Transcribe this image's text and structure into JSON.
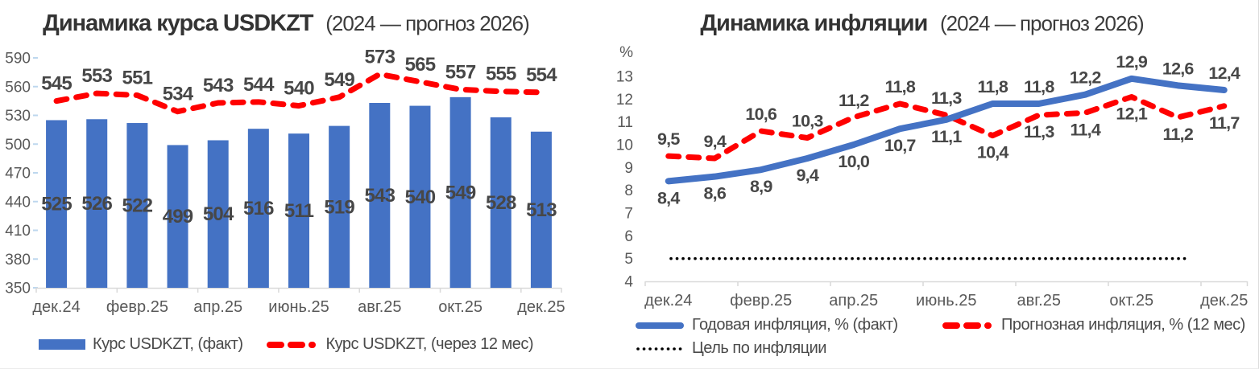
{
  "page": {
    "background": "#FFFFFF"
  },
  "chart_data": [
    {
      "type": "bar",
      "title": "Динамика курса USDKZT",
      "subtitle": "(2024 — прогноз 2026)",
      "x_points": 13,
      "x_tick_interval": 2,
      "x_tick_labels": [
        "дек.24",
        "февр.25",
        "апр.25",
        "июнь.25",
        "авг.25",
        "окт.25",
        "дек.25"
      ],
      "y_axis": {
        "min": 350,
        "max": 590,
        "step": 30,
        "ticks": [
          590,
          560,
          530,
          500,
          470,
          440,
          410,
          380,
          350
        ]
      },
      "legend_position": "bottom",
      "series": [
        {
          "name": "Курс USDKZT, (факт)",
          "type": "bar",
          "color": "#4472C4",
          "values": [
            525,
            526,
            522,
            499,
            504,
            516,
            511,
            519,
            543,
            540,
            549,
            528,
            513
          ],
          "labels": [
            "525",
            "526",
            "522",
            "499",
            "504",
            "516",
            "511",
            "519",
            "543",
            "540",
            "549",
            "528",
            "513"
          ]
        },
        {
          "name": "Курс USDKZT, (через 12 мес)",
          "type": "dashed-line",
          "color": "#FF0000",
          "values": [
            545,
            553,
            551,
            534,
            543,
            544,
            540,
            549,
            573,
            565,
            557,
            555,
            554
          ],
          "labels": [
            "545",
            "553",
            "551",
            "534",
            "543",
            "544",
            "540",
            "549",
            "573",
            "565",
            "557",
            "555",
            "554"
          ]
        }
      ]
    },
    {
      "type": "line",
      "title": "Динамика инфляции",
      "subtitle": "(2024 — прогноз 2026)",
      "x_points": 13,
      "x_tick_interval": 2,
      "x_tick_labels": [
        "дек.24",
        "февр.25",
        "апр.25",
        "июнь.25",
        "авг.25",
        "окт.25",
        "дек.25"
      ],
      "y_axis": {
        "min": 4,
        "max": 13,
        "step": 1,
        "unit": "%",
        "ticks": [
          13,
          12,
          11,
          10,
          9,
          8,
          7,
          6,
          5,
          4
        ]
      },
      "legend_position": "bottom",
      "crossover_index": 7,
      "series": [
        {
          "name": "Годовая инфляция, % (факт)",
          "type": "line",
          "color": "#4472C4",
          "values": [
            8.4,
            8.6,
            8.9,
            9.4,
            10.0,
            10.7,
            11.1,
            11.8,
            11.8,
            12.2,
            12.9,
            12.6,
            12.4
          ],
          "labels": [
            "8,4",
            "8,6",
            "8,9",
            "9,4",
            "10,0",
            "10,7",
            "11,1",
            "11,8",
            "11,8",
            "12,2",
            "12,9",
            "12,6",
            "12,4"
          ]
        },
        {
          "name": "Прогнозная инфляция, % (12 мес)",
          "type": "dashed-line",
          "color": "#FF0000",
          "values": [
            9.5,
            9.4,
            10.6,
            10.3,
            11.2,
            11.8,
            11.3,
            10.4,
            11.3,
            11.4,
            12.1,
            11.2,
            11.7
          ],
          "labels": [
            "9,5",
            "9,4",
            "10,6",
            "10,3",
            "11,2",
            "11,8",
            "11,3",
            "10,4",
            "11,3",
            "11,4",
            "12,1",
            "11,2",
            "11,7"
          ]
        },
        {
          "name": "Цель по инфляции",
          "type": "dotted-line",
          "color": "#000000",
          "value": 5
        }
      ]
    }
  ]
}
